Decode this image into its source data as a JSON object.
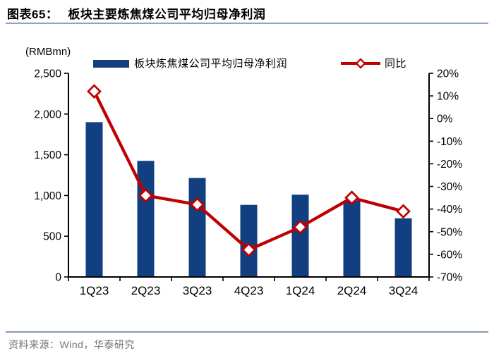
{
  "header": {
    "figure_label": "图表65：",
    "title": "板块主要炼焦煤公司平均归母净利润"
  },
  "chart": {
    "unit_label": "(RMBmn)"
  },
  "legend": {
    "bar_series": "板块炼焦煤公司平均归母净利润",
    "line_series": "同比"
  },
  "footer": {
    "source": "资料来源：Wind，华泰研究"
  },
  "colors": {
    "bar": "#123F7F",
    "line": "#C00000",
    "marker_fill": "#FFFFFF",
    "axis": "#000000",
    "title_rule": "#8CA3C8",
    "footer_rule": "#8A99B5",
    "source_text": "#737373"
  },
  "chart_data": {
    "type": "bar",
    "title": "板块主要炼焦煤公司平均归母净利润",
    "unit": "RMBmn",
    "categories": [
      "1Q23",
      "2Q23",
      "3Q23",
      "4Q23",
      "1Q24",
      "2Q24",
      "3Q24"
    ],
    "series": [
      {
        "name": "板块炼焦煤公司平均归母净利润",
        "type": "bar",
        "axis": "left",
        "values": [
          1900,
          1425,
          1215,
          885,
          1010,
          935,
          720
        ]
      },
      {
        "name": "同比",
        "type": "line",
        "axis": "right",
        "unit": "%",
        "values": [
          12,
          -34,
          -38,
          -58,
          -48,
          -35,
          -41
        ]
      }
    ],
    "left_axis": {
      "label": "(RMBmn)",
      "min": 0,
      "max": 2500,
      "tick_values": [
        2500,
        2000,
        1500,
        1000,
        500,
        0
      ],
      "tick_labels": [
        "2,500",
        "2,000",
        "1,500",
        "1,000",
        "500",
        "0"
      ]
    },
    "right_axis": {
      "min": -70,
      "max": 20,
      "tick_values": [
        20,
        10,
        0,
        -10,
        -20,
        -30,
        -40,
        -50,
        -60,
        -70
      ],
      "tick_labels": [
        "20%",
        "10%",
        "0%",
        "-10%",
        "-20%",
        "-30%",
        "-40%",
        "-50%",
        "-60%",
        "-70%"
      ]
    },
    "legend_position": "top",
    "grid": false
  }
}
